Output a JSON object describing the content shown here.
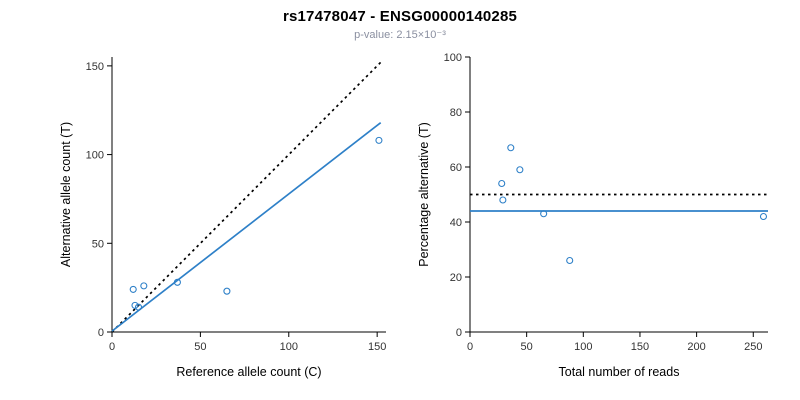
{
  "title": "rs17478047 - ENSG00000140285",
  "subtitle": "p-value: 2.15×10⁻³",
  "colors": {
    "accent_blue": "#2e80c8",
    "line_black": "#000000",
    "tick_text": "#333333"
  },
  "chart_data": [
    {
      "type": "scatter",
      "title": "",
      "xlabel": "Reference allele count (C)",
      "ylabel": "Alternative allele count (T)",
      "xlim": [
        0,
        155
      ],
      "ylim": [
        0,
        155
      ],
      "xticks": [
        0,
        50,
        100,
        150
      ],
      "yticks": [
        0,
        50,
        100,
        150
      ],
      "points": [
        [
          12,
          24
        ],
        [
          13,
          15
        ],
        [
          15,
          14
        ],
        [
          18,
          26
        ],
        [
          37,
          28
        ],
        [
          65,
          23
        ],
        [
          151,
          108
        ]
      ],
      "lines": [
        {
          "name": "identity-line",
          "style": "dotted",
          "color": "#000000",
          "x1": 0,
          "y1": 0,
          "x2": 152,
          "y2": 152
        },
        {
          "name": "regression-line",
          "style": "solid",
          "color": "#2e80c8",
          "x1": 0,
          "y1": 0.5,
          "x2": 152,
          "y2": 118
        }
      ]
    },
    {
      "type": "scatter",
      "title": "",
      "xlabel": "Total number of reads",
      "ylabel": "Percentage alternative (T)",
      "xlim": [
        0,
        263
      ],
      "ylim": [
        0,
        100
      ],
      "xticks": [
        0,
        50,
        100,
        150,
        200,
        250
      ],
      "yticks": [
        0,
        20,
        40,
        60,
        80,
        100
      ],
      "points": [
        [
          36,
          67
        ],
        [
          28,
          54
        ],
        [
          29,
          48
        ],
        [
          44,
          59
        ],
        [
          65,
          43
        ],
        [
          88,
          26
        ],
        [
          259,
          42
        ]
      ],
      "lines": [
        {
          "name": "fifty-percent-line",
          "style": "dotted",
          "color": "#000000",
          "x1": 0,
          "y1": 50,
          "x2": 263,
          "y2": 50
        },
        {
          "name": "mean-percentage-line",
          "style": "solid",
          "color": "#2e80c8",
          "x1": 0,
          "y1": 44,
          "x2": 263,
          "y2": 44
        }
      ]
    }
  ]
}
